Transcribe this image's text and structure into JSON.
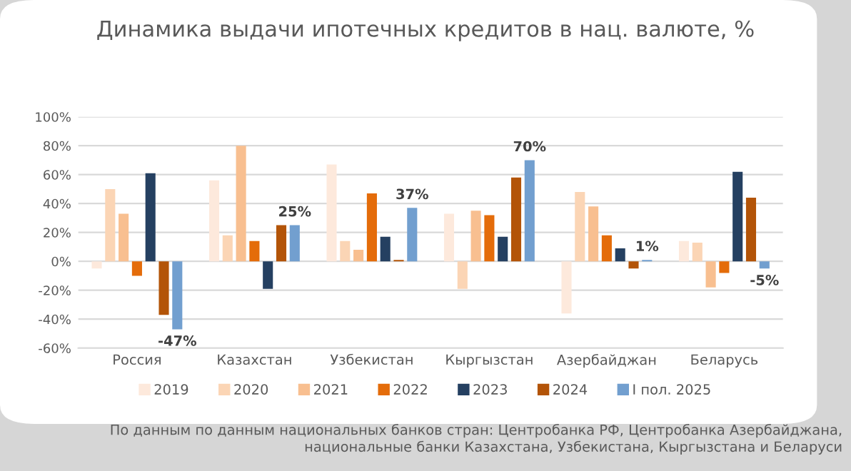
{
  "chart_data": {
    "type": "bar",
    "title": "Динамика выдачи ипотечных кредитов в нац. валюте, %",
    "categories": [
      "Россия",
      "Казахстан",
      "Узбекистан",
      "Кыргызстан",
      "Азербайджан",
      "Беларусь"
    ],
    "series": [
      {
        "name": "2019",
        "color": "#fde9dc",
        "values": [
          -5,
          56,
          67,
          33,
          -36,
          14
        ]
      },
      {
        "name": "2020",
        "color": "#fbd5b5",
        "values": [
          50,
          18,
          14,
          -19,
          48,
          13
        ]
      },
      {
        "name": "2021",
        "color": "#f8bf90",
        "values": [
          33,
          80,
          8,
          35,
          38,
          -18
        ]
      },
      {
        "name": "2022",
        "color": "#e46c0a",
        "values": [
          -10,
          14,
          47,
          32,
          18,
          -8
        ]
      },
      {
        "name": "2023",
        "color": "#254061",
        "values": [
          61,
          -19,
          17,
          17,
          9,
          62
        ]
      },
      {
        "name": "2024",
        "color": "#b35408",
        "values": [
          -37,
          25,
          1,
          58,
          -5,
          44
        ]
      },
      {
        "name": "I пол. 2025",
        "color": "#729fcf",
        "values": [
          -47,
          25,
          37,
          70,
          1,
          -5
        ],
        "value_labels": [
          "-47%",
          "25%",
          "37%",
          "70%",
          "1%",
          "-5%"
        ]
      }
    ],
    "ylim": [
      -60,
      100
    ],
    "yticks": [
      {
        "value": -60,
        "label": "-60%"
      },
      {
        "value": -40,
        "label": "-40%"
      },
      {
        "value": -20,
        "label": "-20%"
      },
      {
        "value": 0,
        "label": "0%"
      },
      {
        "value": 20,
        "label": "20%"
      },
      {
        "value": 40,
        "label": "40%"
      },
      {
        "value": 60,
        "label": "60%"
      },
      {
        "value": 80,
        "label": "80%"
      },
      {
        "value": 100,
        "label": "100%"
      }
    ],
    "grid": "y",
    "legend": "bottom",
    "annotations": [
      "По данным по данным национальных банков стран: Центробанка РФ, Центробанка Азербайджана,\nнациональные банки Казахстана, Узбекистана, Кыргызстана и Беларуси"
    ]
  }
}
